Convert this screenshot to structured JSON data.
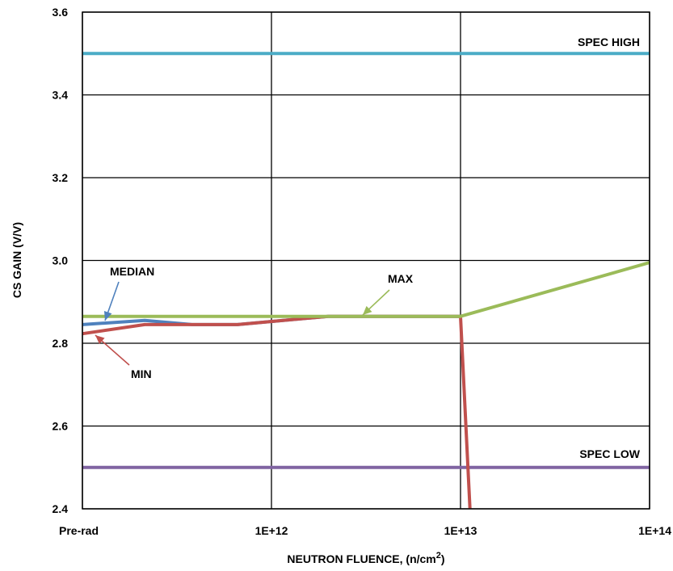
{
  "chart_data": {
    "type": "line",
    "title": "",
    "xlabel": "NEUTRON FLUENCE, (n/cm",
    "xlabel_sup": "2",
    "xlabel_close": ")",
    "ylabel": "CS GAIN (V/V)",
    "x_scale": "log",
    "x_ticks": [
      {
        "label": "Pre-rad",
        "pos": 0
      },
      {
        "label": "1E+12",
        "pos": 1
      },
      {
        "label": "1E+13",
        "pos": 2
      },
      {
        "label": "1E+14",
        "pos": 3
      }
    ],
    "y_ticks": [
      "2.4",
      "2.6",
      "2.8",
      "3.0",
      "3.2",
      "3.4",
      "3.6"
    ],
    "ylim": [
      2.4,
      3.6
    ],
    "grid": true,
    "series": [
      {
        "name": "SPEC HIGH",
        "color": "#4BACC6",
        "points": [
          [
            0,
            3.5
          ],
          [
            3,
            3.5
          ]
        ]
      },
      {
        "name": "SPEC LOW",
        "color": "#8064A2",
        "points": [
          [
            0,
            2.5
          ],
          [
            3,
            2.5
          ]
        ]
      },
      {
        "name": "MEDIAN",
        "color": "#4F81BD",
        "points": [
          [
            0,
            2.845
          ],
          [
            0.33,
            2.855
          ],
          [
            0.58,
            2.845
          ],
          [
            0.82,
            2.845
          ],
          [
            1.3,
            2.865
          ],
          [
            2.0,
            2.865
          ]
        ]
      },
      {
        "name": "MIN",
        "color": "#C0504D",
        "points": [
          [
            0,
            2.823
          ],
          [
            0.33,
            2.845
          ],
          [
            0.82,
            2.845
          ],
          [
            1.3,
            2.865
          ],
          [
            2.0,
            2.865
          ],
          [
            2.05,
            2.4
          ]
        ]
      },
      {
        "name": "MAX",
        "color": "#9BBB59",
        "points": [
          [
            0,
            2.865
          ],
          [
            2.0,
            2.865
          ],
          [
            3.0,
            2.995
          ]
        ]
      }
    ],
    "annotations": [
      {
        "text": "SPEC HIGH",
        "series": "SPEC HIGH"
      },
      {
        "text": "SPEC LOW",
        "series": "SPEC LOW"
      },
      {
        "text": "MEDIAN",
        "series": "MEDIAN",
        "arrow_color": "#4F81BD"
      },
      {
        "text": "MIN",
        "series": "MIN",
        "arrow_color": "#C0504D"
      },
      {
        "text": "MAX",
        "series": "MAX",
        "arrow_color": "#9BBB59"
      }
    ]
  }
}
